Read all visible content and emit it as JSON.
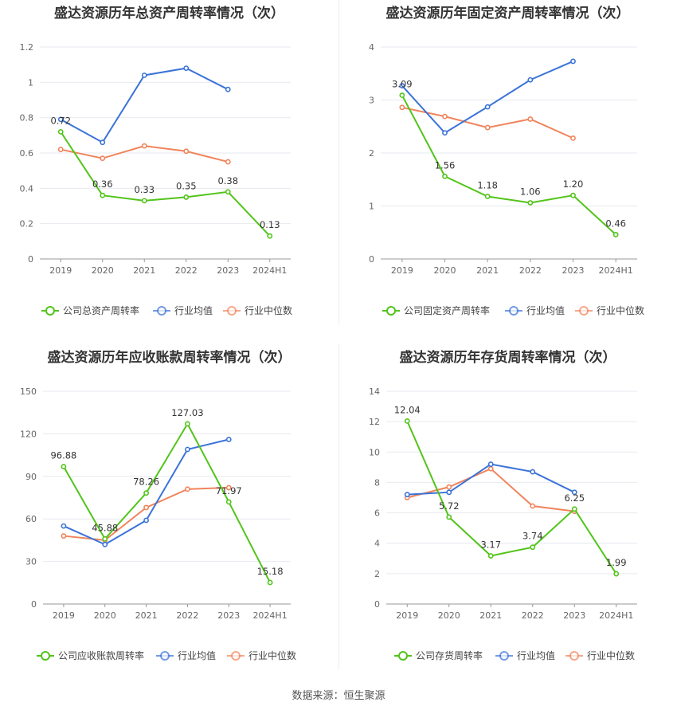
{
  "source_label": "数据来源：恒生聚源",
  "colors": {
    "company": "#52c41a",
    "industry_avg": "#3b73d8",
    "industry_median": "#f0845c",
    "grid": "#e6e9ef",
    "axis": "#999999",
    "tick": "#666666",
    "label": "#333333"
  },
  "chart_data": [
    {
      "type": "line",
      "title": "盛达资源历年总资产周转率情况（次）",
      "categories": [
        "2019",
        "2020",
        "2021",
        "2022",
        "2023",
        "2024H1"
      ],
      "ylim": [
        0,
        1.2
      ],
      "yticks": [
        "0",
        "0.2",
        "0.4",
        "0.6",
        "0.8",
        "1",
        "1.2"
      ],
      "grid": true,
      "legend": "bottom",
      "series": [
        {
          "name": "公司总资产周转率",
          "color": "#52c41a",
          "labels": true,
          "values": [
            0.72,
            0.36,
            0.33,
            0.35,
            0.38,
            0.13
          ],
          "value_labels": [
            "0.72",
            "0.36",
            "0.33",
            "0.35",
            "0.38",
            "0.13"
          ]
        },
        {
          "name": "行业均值",
          "color": "#3b73d8",
          "values": [
            0.79,
            0.66,
            1.04,
            1.08,
            0.96,
            null
          ]
        },
        {
          "name": "行业中位数",
          "color": "#f0845c",
          "values": [
            0.62,
            0.57,
            0.64,
            0.61,
            0.55,
            null
          ]
        }
      ]
    },
    {
      "type": "line",
      "title": "盛达资源历年固定资产周转率情况（次）",
      "categories": [
        "2019",
        "2020",
        "2021",
        "2022",
        "2023",
        "2024H1"
      ],
      "ylim": [
        0,
        4
      ],
      "yticks": [
        "0",
        "1",
        "2",
        "3",
        "4"
      ],
      "grid": true,
      "legend": "bottom",
      "series": [
        {
          "name": "公司固定资产周转率",
          "color": "#52c41a",
          "labels": true,
          "values": [
            3.09,
            1.56,
            1.18,
            1.06,
            1.2,
            0.46
          ],
          "value_labels": [
            "3.09",
            "1.56",
            "1.18",
            "1.06",
            "1.20",
            "0.46"
          ]
        },
        {
          "name": "行业均值",
          "color": "#3b73d8",
          "values": [
            3.27,
            2.38,
            2.87,
            3.38,
            3.73,
            null
          ]
        },
        {
          "name": "行业中位数",
          "color": "#f0845c",
          "values": [
            2.86,
            2.69,
            2.48,
            2.64,
            2.28,
            null
          ]
        }
      ]
    },
    {
      "type": "line",
      "title": "盛达资源历年应收账款周转率情况（次）",
      "categories": [
        "2019",
        "2020",
        "2021",
        "2022",
        "2023",
        "2024H1"
      ],
      "ylim": [
        0,
        150
      ],
      "yticks": [
        "0",
        "30",
        "60",
        "90",
        "120",
        "150"
      ],
      "grid": true,
      "legend": "bottom",
      "series": [
        {
          "name": "公司应收账款周转率",
          "color": "#52c41a",
          "labels": true,
          "values": [
            96.88,
            45.88,
            78.26,
            127.03,
            71.97,
            15.18
          ],
          "value_labels": [
            "96.88",
            "45.88",
            "78.26",
            "127.03",
            "71.97",
            "15.18"
          ]
        },
        {
          "name": "行业均值",
          "color": "#3b73d8",
          "values": [
            55,
            42,
            59,
            109,
            116,
            null
          ]
        },
        {
          "name": "行业中位数",
          "color": "#f0845c",
          "values": [
            48,
            45,
            68,
            81,
            82,
            null
          ]
        }
      ]
    },
    {
      "type": "line",
      "title": "盛达资源历年存货周转率情况（次）",
      "categories": [
        "2019",
        "2020",
        "2021",
        "2022",
        "2023",
        "2024H1"
      ],
      "ylim": [
        0,
        14
      ],
      "yticks": [
        "0",
        "2",
        "4",
        "6",
        "8",
        "10",
        "12",
        "14"
      ],
      "grid": true,
      "legend": "bottom",
      "series": [
        {
          "name": "公司存货周转率",
          "color": "#52c41a",
          "labels": true,
          "values": [
            12.04,
            5.72,
            3.17,
            3.74,
            6.25,
            1.99
          ],
          "value_labels": [
            "12.04",
            "5.72",
            "3.17",
            "3.74",
            "6.25",
            "1.99"
          ]
        },
        {
          "name": "行业均值",
          "color": "#3b73d8",
          "values": [
            7.2,
            7.35,
            9.2,
            8.7,
            7.35,
            null
          ]
        },
        {
          "name": "行业中位数",
          "color": "#f0845c",
          "values": [
            7.0,
            7.7,
            8.9,
            6.45,
            6.1,
            null
          ]
        }
      ]
    }
  ]
}
